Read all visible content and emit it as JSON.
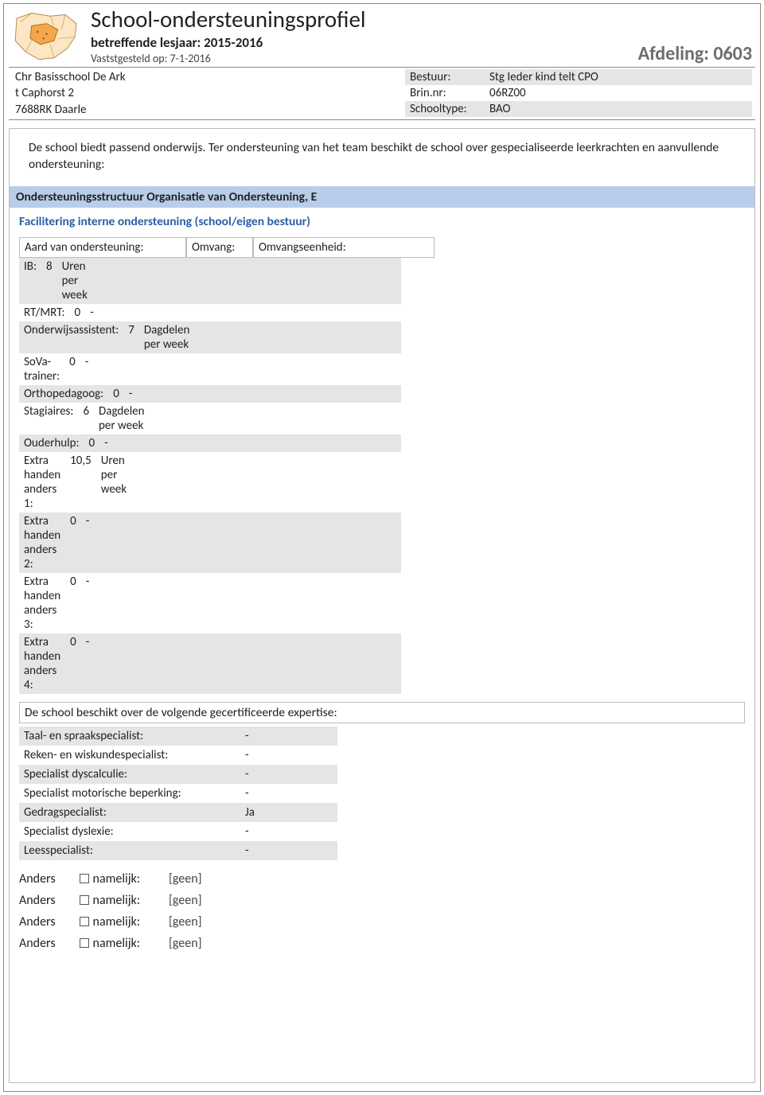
{
  "colors": {
    "section_bar_bg": "#b9cdea",
    "shade_bg": "#e5e5e5",
    "subsection_text": "#2a5fa5",
    "afdeling_text": "#6d6d6d",
    "border": "#bbbbbb"
  },
  "header": {
    "title": "School-ondersteuningsprofiel",
    "subtitle_label": "betreffende lesjaar:",
    "subtitle_value": "2015-2016",
    "vastgesteld_label": "Vaststgesteld op:",
    "vastgesteld_value": "7-1-2016",
    "afdeling_label": "Afdeling:",
    "afdeling_value": "0603"
  },
  "school": {
    "name": "Chr Basisschool De Ark",
    "address": "t Caphorst 2",
    "postcode_city": "7688RK Daarle",
    "bestuur_label": "Bestuur:",
    "bestuur_value": "Stg Ieder kind telt CPO",
    "brin_label": "Brin.nr:",
    "brin_value": "06RZ00",
    "schooltype_label": "Schooltype:",
    "schooltype_value": "BAO"
  },
  "intro": "De school biedt passend onderwijs. Ter ondersteuning van het team beschikt de school over gespecialiseerde leerkrachten en aanvullende ondersteuning:",
  "section_title": "Ondersteuningsstructuur Organisatie van Ondersteuning, E",
  "subsection_title": "Facilitering interne ondersteuning (school/eigen bestuur)",
  "support_table": {
    "headers": {
      "c1": "Aard van ondersteuning:",
      "c2": "Omvang:",
      "c3": "Omvangseenheid:"
    },
    "rows": [
      {
        "label": "IB:",
        "amount": "8",
        "unit": "Uren per week",
        "shade": true
      },
      {
        "label": "RT/MRT:",
        "amount": "0",
        "unit": "-",
        "shade": false
      },
      {
        "label": "Onderwijsassistent:",
        "amount": "7",
        "unit": "Dagdelen per week",
        "shade": true
      },
      {
        "label": "SoVa-trainer:",
        "amount": "0",
        "unit": "-",
        "shade": false
      },
      {
        "label": "Orthopedagoog:",
        "amount": "0",
        "unit": "-",
        "shade": true
      },
      {
        "label": "Stagiaires:",
        "amount": "6",
        "unit": "Dagdelen per week",
        "shade": false
      },
      {
        "label": "Ouderhulp:",
        "amount": "0",
        "unit": "-",
        "shade": true
      },
      {
        "label": "Extra handen anders 1:",
        "amount": "10,5",
        "unit": "Uren per week",
        "shade": false
      },
      {
        "label": "Extra handen anders 2:",
        "amount": "0",
        "unit": "-",
        "shade": true
      },
      {
        "label": "Extra handen anders 3:",
        "amount": "0",
        "unit": "-",
        "shade": false
      },
      {
        "label": "Extra handen anders 4:",
        "amount": "0",
        "unit": "-",
        "shade": true
      }
    ]
  },
  "expertise": {
    "header": "De school beschikt over de volgende gecertificeerde expertise:",
    "rows": [
      {
        "label": "Taal- en spraakspecialist:",
        "value": "-",
        "shade": true
      },
      {
        "label": "Reken- en wiskundespecialist:",
        "value": "-",
        "shade": false
      },
      {
        "label": "Specialist dyscalculie:",
        "value": "-",
        "shade": true
      },
      {
        "label": "Specialist motorische beperking:",
        "value": "-",
        "shade": false
      },
      {
        "label": "Gedragspecialist:",
        "value": "Ja",
        "shade": true
      },
      {
        "label": "Specialist dyslexie:",
        "value": "-",
        "shade": false
      },
      {
        "label": "Leesspecialist:",
        "value": "-",
        "shade": true
      }
    ]
  },
  "anders": {
    "label1": "Anders",
    "label2": "namelijk:",
    "rows": [
      {
        "value": "[geen]"
      },
      {
        "value": "[geen]"
      },
      {
        "value": "[geen]"
      },
      {
        "value": "[geen]"
      }
    ]
  }
}
